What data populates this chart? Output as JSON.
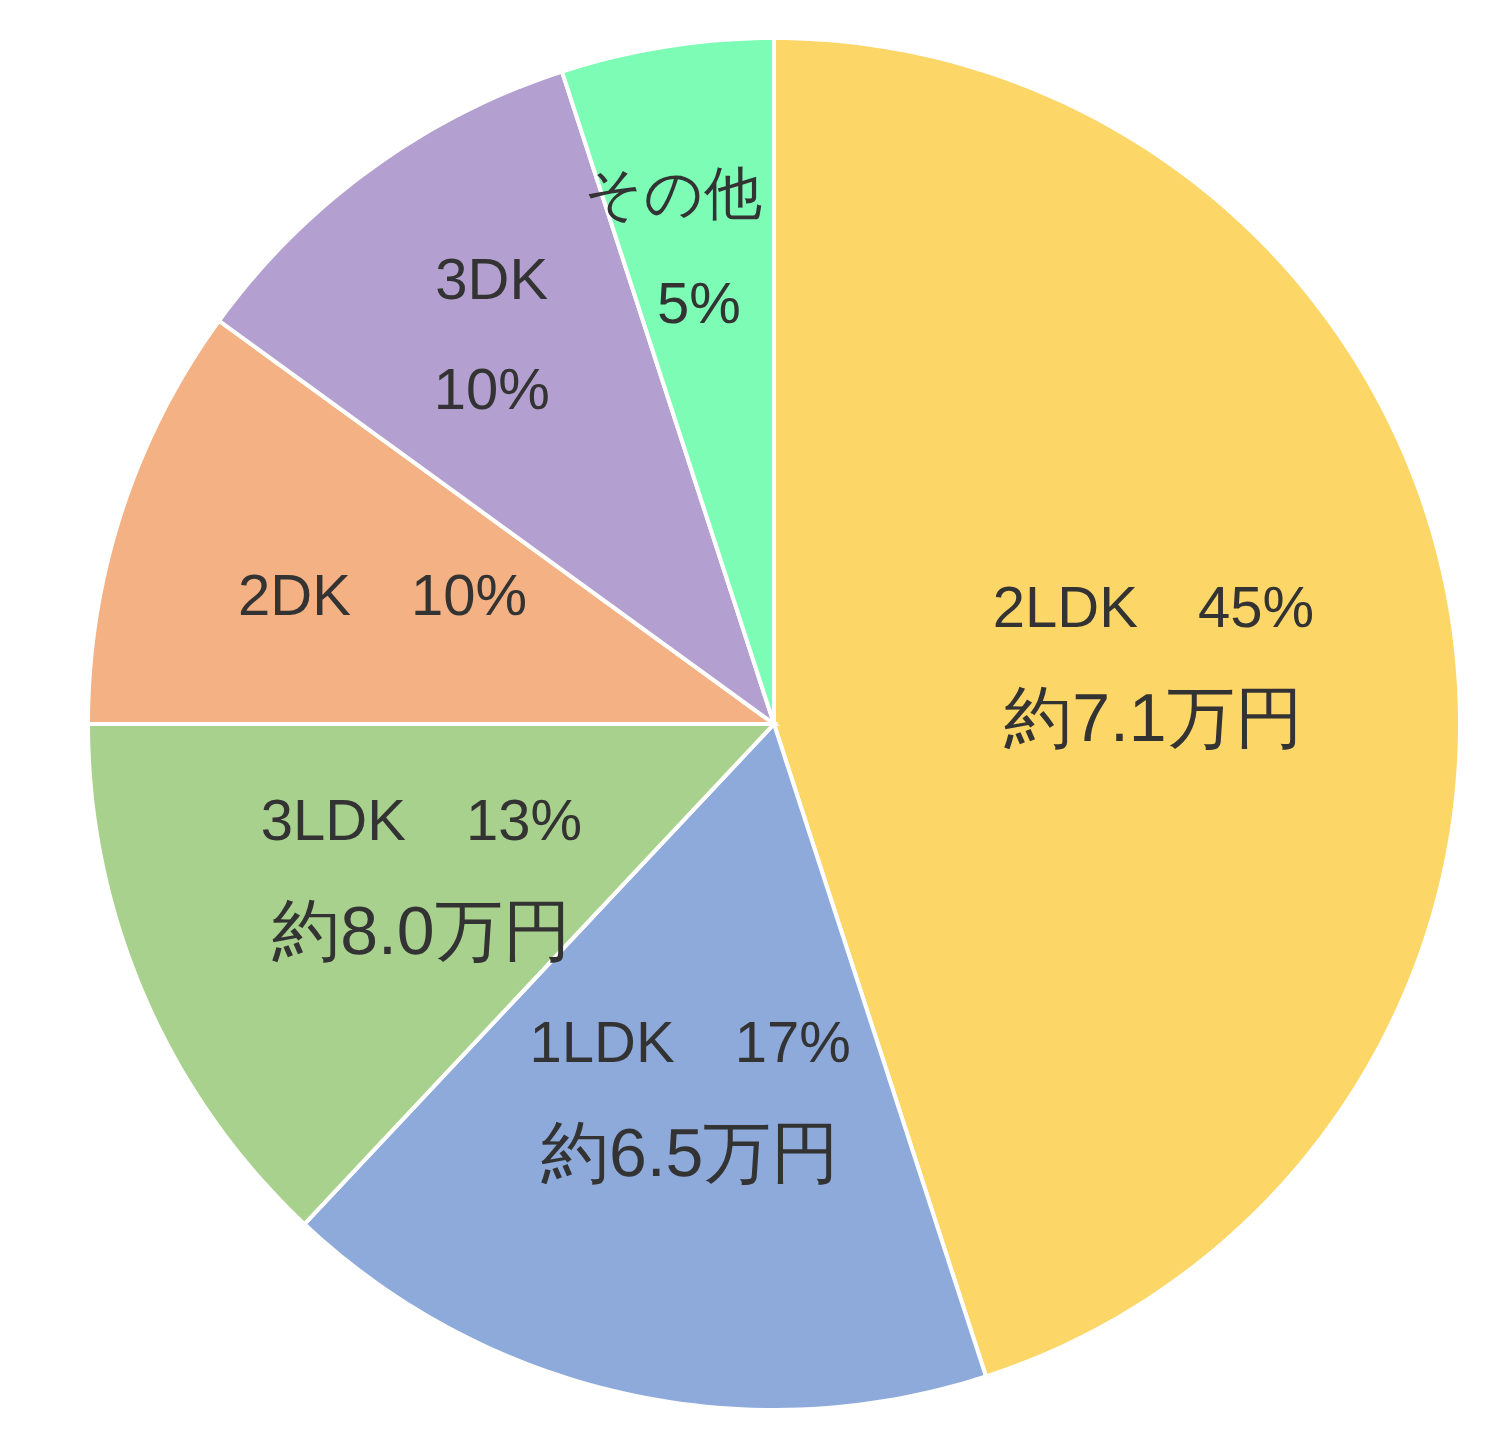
{
  "chart_data": {
    "type": "pie",
    "categories": [
      "2LDK",
      "1LDK",
      "3LDK",
      "2DK",
      "3DK",
      "その他"
    ],
    "values": [
      45,
      17,
      13,
      10,
      10,
      5
    ],
    "value_labels": [
      "45%",
      "17%",
      "13%",
      "10%",
      "10%",
      "5%"
    ],
    "colors": [
      "#fcd667",
      "#8eaadb",
      "#a9d18e",
      "#f4b183",
      "#b4a0d0",
      "#7dfcb5"
    ],
    "annotations": [
      {
        "text": "約7.1万円",
        "x": "2LDK"
      },
      {
        "text": "約6.5万円",
        "x": "1LDK"
      },
      {
        "text": "約8.0万円",
        "x": "3LDK"
      }
    ],
    "legend": false
  }
}
